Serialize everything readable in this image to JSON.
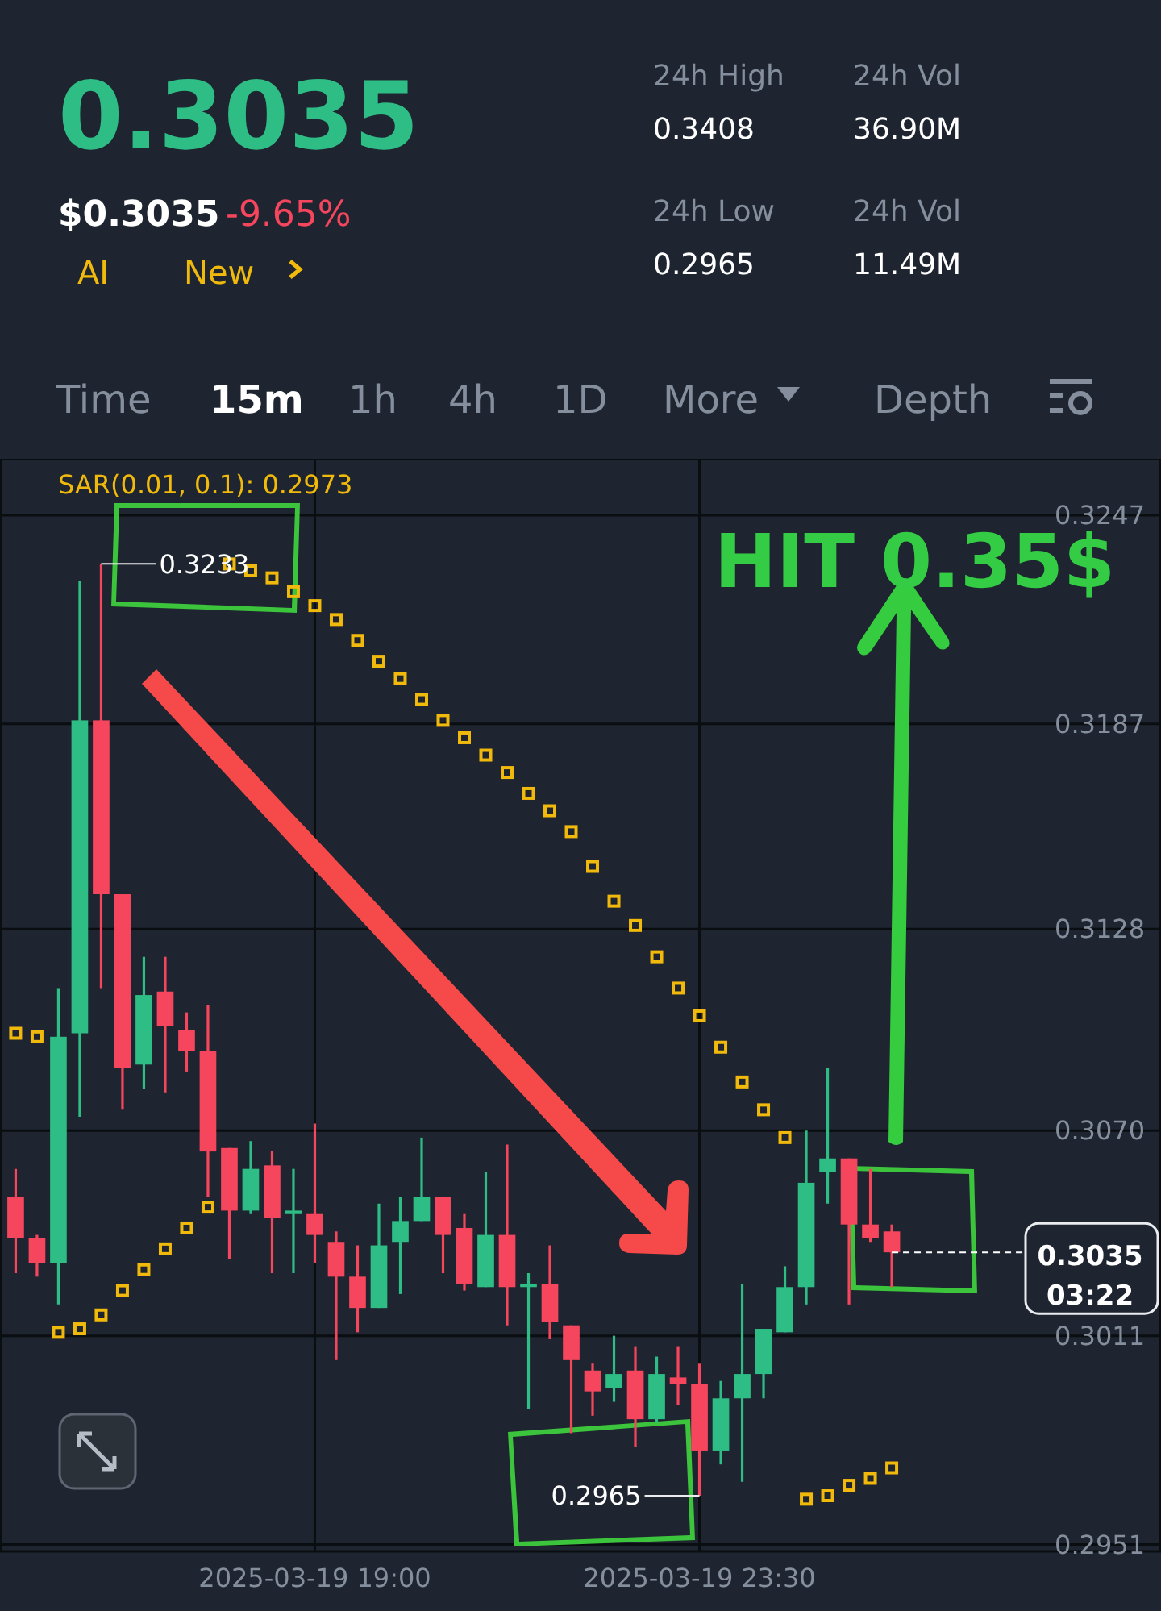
{
  "chart_data": {
    "type": "candlestick",
    "x": [
      "2025-03-19T15:30",
      "2025-03-19T15:45",
      "2025-03-19T16:00",
      "2025-03-19T16:15",
      "2025-03-19T16:30",
      "2025-03-19T16:45",
      "2025-03-19T17:00",
      "2025-03-19T17:15",
      "2025-03-19T17:30",
      "2025-03-19T17:45",
      "2025-03-19T18:00",
      "2025-03-19T18:15",
      "2025-03-19T18:30",
      "2025-03-19T18:45",
      "2025-03-19T19:00",
      "2025-03-19T19:15",
      "2025-03-19T19:30",
      "2025-03-19T19:45",
      "2025-03-19T20:00",
      "2025-03-19T20:15",
      "2025-03-19T20:30",
      "2025-03-19T20:45",
      "2025-03-19T21:00",
      "2025-03-19T21:15",
      "2025-03-19T21:30",
      "2025-03-19T21:45",
      "2025-03-19T22:00",
      "2025-03-19T22:15",
      "2025-03-19T22:30",
      "2025-03-19T22:45",
      "2025-03-19T23:00",
      "2025-03-19T23:15",
      "2025-03-19T23:30",
      "2025-03-19T23:45",
      "2025-03-20T00:00",
      "2025-03-20T00:15",
      "2025-03-20T00:30",
      "2025-03-20T00:45",
      "2025-03-20T01:00",
      "2025-03-20T01:15",
      "2025-03-20T01:30",
      "2025-03-20T01:45"
    ],
    "ohlc": [
      [
        0.3051,
        0.3059,
        0.3029,
        0.3039
      ],
      [
        0.3039,
        0.304,
        0.3028,
        0.3032
      ],
      [
        0.3032,
        0.3111,
        0.302,
        0.3097
      ],
      [
        0.3098,
        0.3228,
        0.3074,
        0.3188
      ],
      [
        0.3188,
        0.3233,
        0.3111,
        0.3138
      ],
      [
        0.3138,
        0.3138,
        0.3076,
        0.3088
      ],
      [
        0.3089,
        0.312,
        0.3082,
        0.3109
      ],
      [
        0.311,
        0.312,
        0.3081,
        0.31
      ],
      [
        0.3099,
        0.3104,
        0.3087,
        0.3093
      ],
      [
        0.3093,
        0.3106,
        0.3051,
        0.3064
      ],
      [
        0.3065,
        0.3065,
        0.3033,
        0.3047
      ],
      [
        0.3047,
        0.3067,
        0.3046,
        0.3059
      ],
      [
        0.306,
        0.3064,
        0.3029,
        0.3045
      ],
      [
        0.3046,
        0.3059,
        0.3029,
        0.3047
      ],
      [
        0.3046,
        0.3072,
        0.3032,
        0.304
      ],
      [
        0.3038,
        0.3041,
        0.3004,
        0.3028
      ],
      [
        0.3028,
        0.3037,
        0.3012,
        0.3019
      ],
      [
        0.3019,
        0.3049,
        0.3019,
        0.3037
      ],
      [
        0.3038,
        0.3051,
        0.3023,
        0.3044
      ],
      [
        0.3044,
        0.3068,
        0.3044,
        0.3051
      ],
      [
        0.3051,
        0.3051,
        0.3029,
        0.304
      ],
      [
        0.3042,
        0.3046,
        0.3024,
        0.3026
      ],
      [
        0.3025,
        0.3058,
        0.3025,
        0.304
      ],
      [
        0.304,
        0.3066,
        0.3014,
        0.3025
      ],
      [
        0.3025,
        0.3029,
        0.299,
        0.3026
      ],
      [
        0.3026,
        0.3037,
        0.301,
        0.3015
      ],
      [
        0.3014,
        0.3014,
        0.2983,
        0.3004
      ],
      [
        0.3001,
        0.3003,
        0.2988,
        0.2995
      ],
      [
        0.2996,
        0.3011,
        0.2992,
        0.3
      ],
      [
        0.3001,
        0.3008,
        0.2979,
        0.2987
      ],
      [
        0.2987,
        0.3005,
        0.2986,
        0.3
      ],
      [
        0.2999,
        0.3008,
        0.2991,
        0.2997
      ],
      [
        0.2997,
        0.3003,
        0.2965,
        0.2978
      ],
      [
        0.2978,
        0.2998,
        0.2974,
        0.2993
      ],
      [
        0.2993,
        0.3026,
        0.2969,
        0.3
      ],
      [
        0.3,
        0.3013,
        0.2993,
        0.3013
      ],
      [
        0.3012,
        0.3031,
        0.3012,
        0.3025
      ],
      [
        0.3025,
        0.307,
        0.302,
        0.3055
      ],
      [
        0.3058,
        0.3088,
        0.3049,
        0.3062
      ],
      [
        0.3062,
        0.3062,
        0.302,
        0.3043
      ],
      [
        0.3043,
        0.3059,
        0.3038,
        0.3039
      ],
      [
        0.3041,
        0.3043,
        0.3025,
        0.3035
      ]
    ],
    "colors": [
      "#f6465d",
      "#f6465d",
      "#2ebd85",
      "#2ebd85",
      "#f6465d",
      "#f6465d",
      "#2ebd85",
      "#f6465d",
      "#f6465d",
      "#f6465d",
      "#f6465d",
      "#2ebd85",
      "#f6465d",
      "#2ebd85",
      "#f6465d",
      "#f6465d",
      "#f6465d",
      "#2ebd85",
      "#2ebd85",
      "#2ebd85",
      "#f6465d",
      "#f6465d",
      "#2ebd85",
      "#f6465d",
      "#2ebd85",
      "#f6465d",
      "#f6465d",
      "#f6465d",
      "#2ebd85",
      "#f6465d",
      "#2ebd85",
      "#f6465d",
      "#f6465d",
      "#2ebd85",
      "#2ebd85",
      "#2ebd85",
      "#2ebd85",
      "#2ebd85",
      "#2ebd85",
      "#f6465d",
      "#f6465d",
      "#f6465d"
    ],
    "series": [
      {
        "type": "scatter",
        "name": "SAR(0.01, 0.1): 0.2973",
        "color": "#f0b90b",
        "marker": "square",
        "values": [
          0.3098,
          0.3097,
          0.3012,
          0.3013,
          0.3017,
          0.3024,
          0.303,
          0.3036,
          0.3042,
          0.3048,
          0.3233,
          0.3231,
          0.3229,
          0.3225,
          0.3221,
          0.3217,
          0.3211,
          0.3205,
          0.32,
          0.3194,
          0.3188,
          0.3183,
          0.3178,
          0.3173,
          0.3167,
          0.3162,
          0.3156,
          0.3146,
          0.3136,
          0.3129,
          0.312,
          0.3111,
          0.3103,
          0.3094,
          0.3084,
          0.3076,
          0.3068,
          0.2964,
          0.2965,
          0.2968,
          0.297,
          0.2973
        ]
      }
    ],
    "xlim": [
      "2025-03-19T15:19",
      "2025-03-20T04:54"
    ],
    "xticks": [
      {
        "value": "2025-03-19T19:00",
        "label": "2025-03-19 19:00"
      },
      {
        "value": "2025-03-19T23:30",
        "label": "2025-03-19 23:30"
      }
    ],
    "ylim": [
      0.2949,
      0.3263
    ],
    "yticks": [
      0.3247,
      0.3187,
      0.3128,
      {
        "value": 0.307,
        "label": "0.3070"
      },
      0.3011,
      0.2951
    ],
    "grid": true,
    "legend": "top left",
    "ref_lines": [
      {
        "axis": "y",
        "value": 0.3035,
        "label": "0.3035",
        "color": "#ffffff",
        "line_style": "dashed"
      }
    ],
    "annotations": [
      "0.3035",
      "$0.3035",
      "-9.65%",
      "AI",
      "New",
      "24h High",
      "0.3408",
      "24h Low",
      "0.2965",
      "24h Vol",
      "36.90M",
      "24h Vol",
      "11.49M",
      "Time",
      "15m",
      "1h",
      "4h",
      "1D",
      "More",
      "Depth",
      "HIT 0.35$",
      "03:22",
      {
        "text": "0.3233",
        "x": "2025-03-19T16:30",
        "y": 0.3233
      },
      {
        "text": "0.2965",
        "x": "2025-03-19T23:30",
        "y": 0.2965
      }
    ]
  }
}
